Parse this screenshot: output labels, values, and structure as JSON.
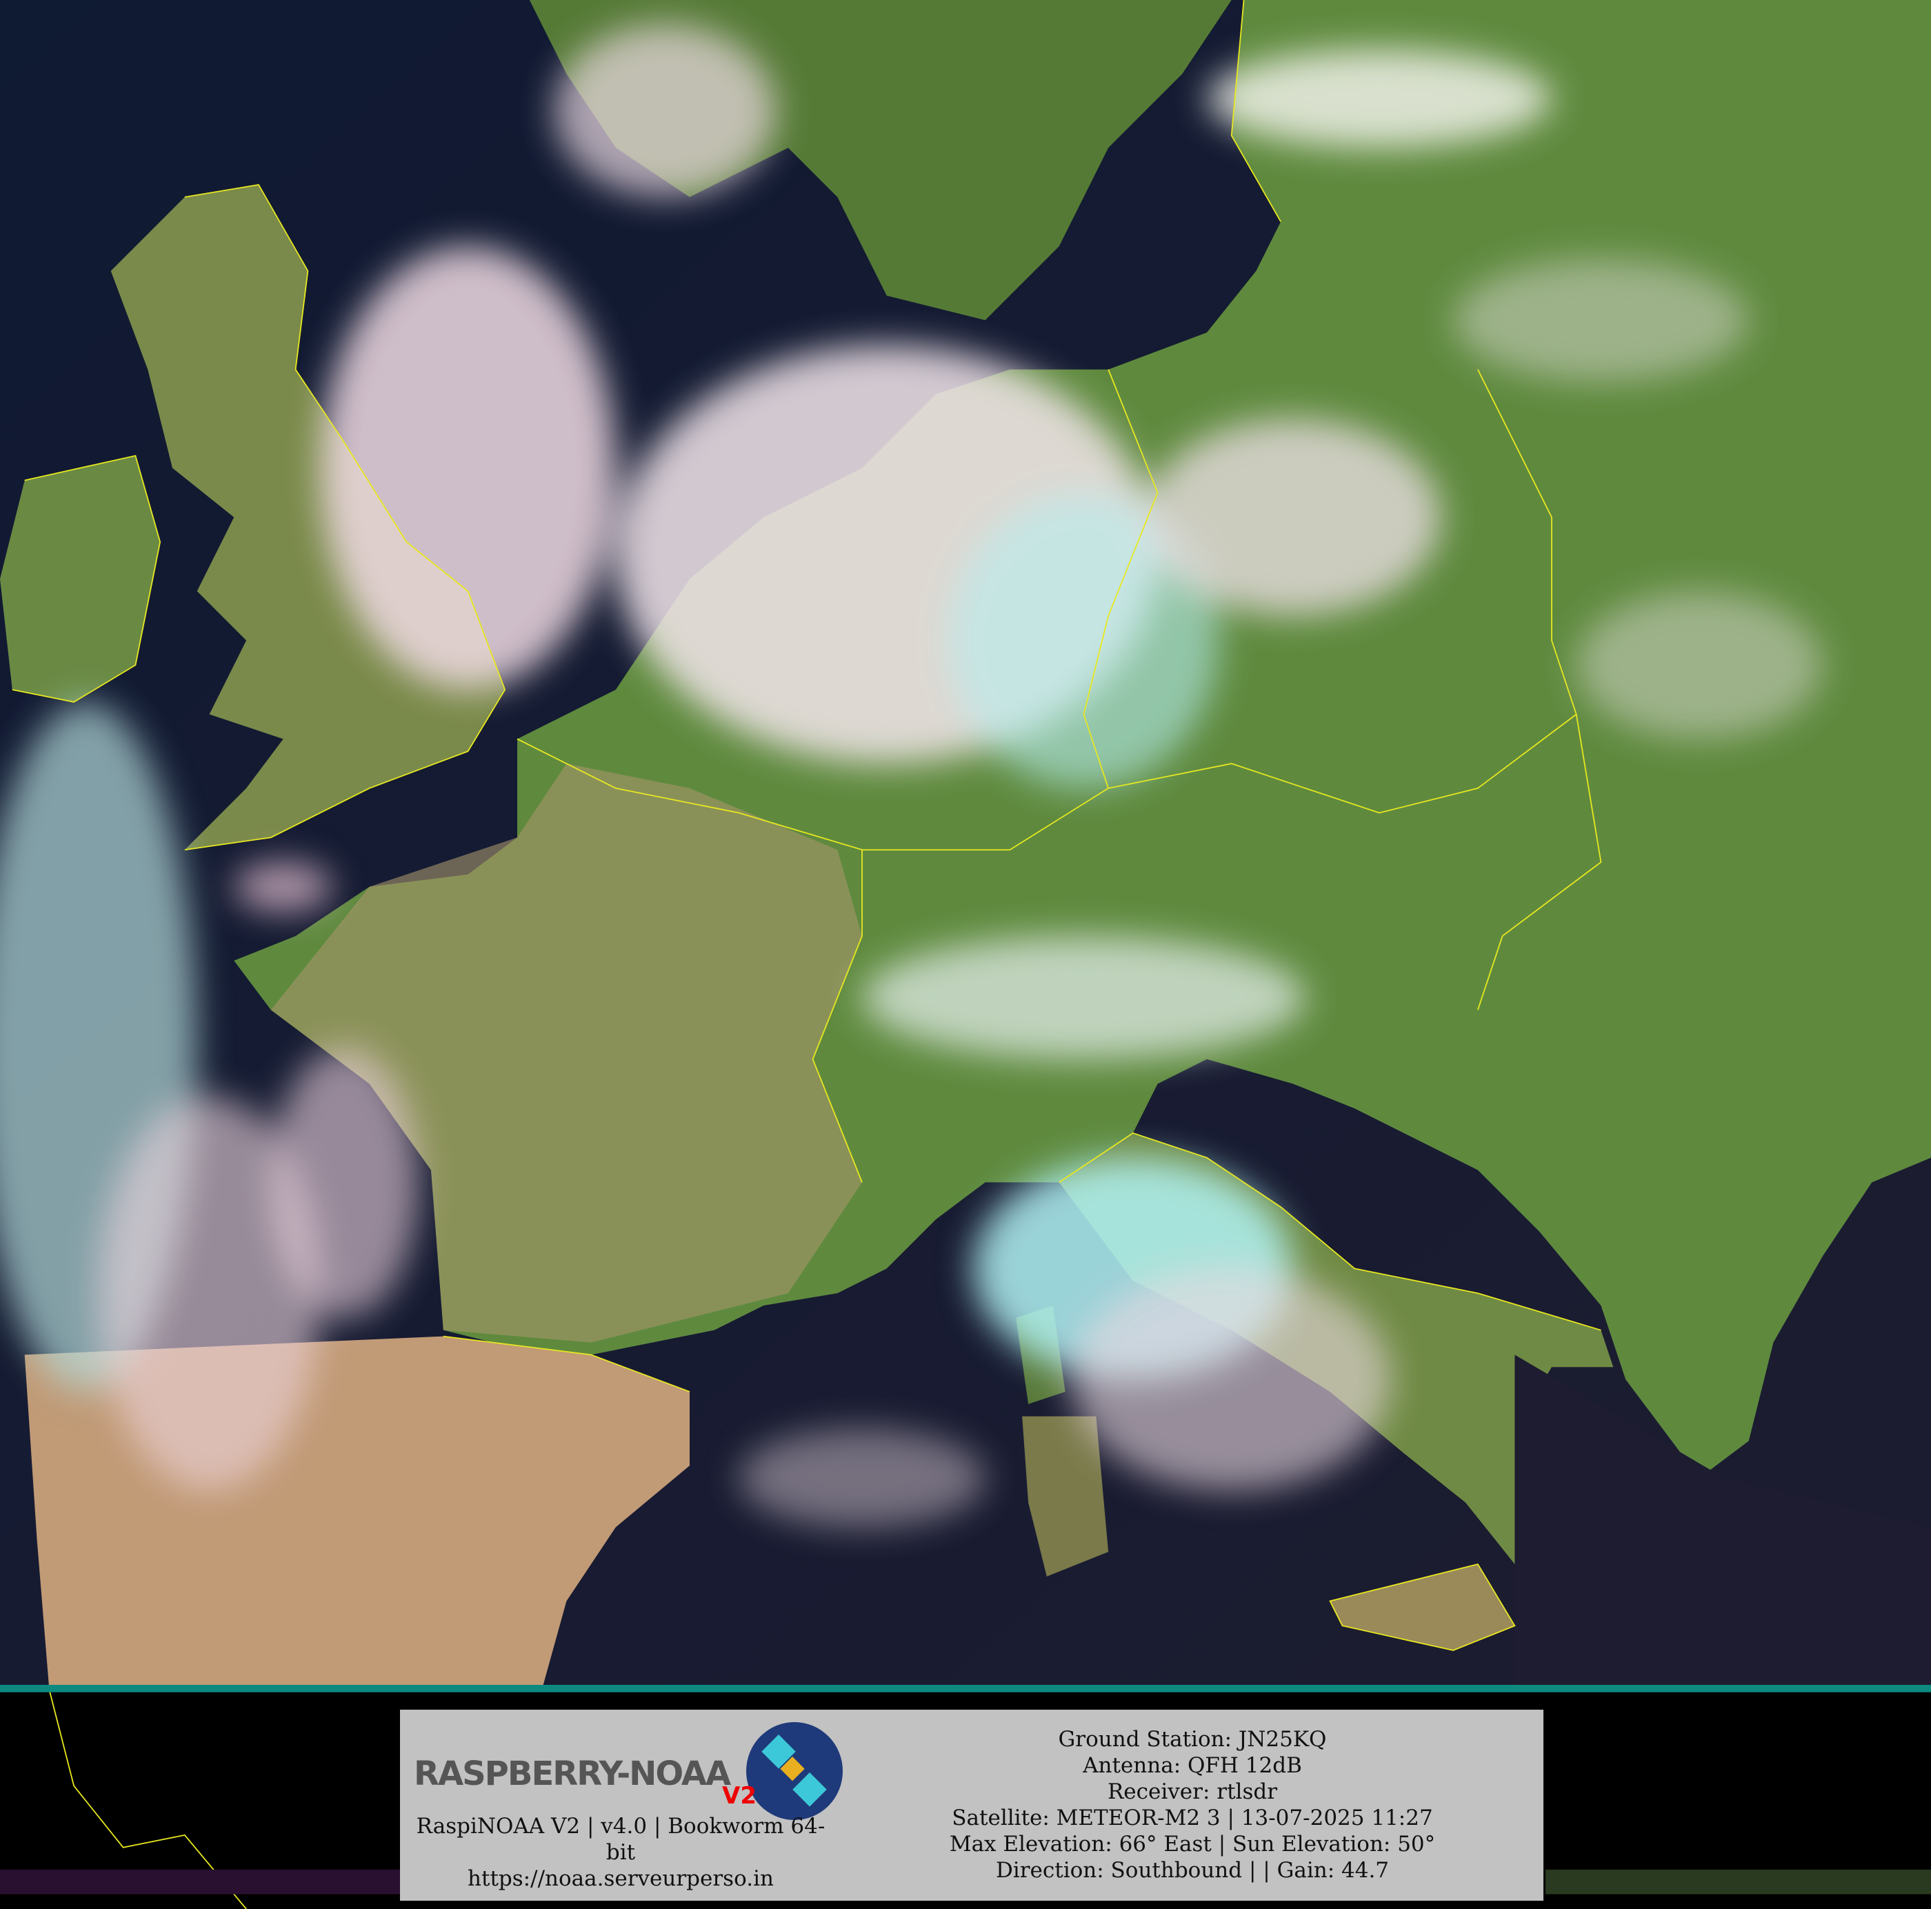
{
  "colors": {
    "sea": "#141c33",
    "land": "#5e8a3c",
    "land_dry": "#b89a72",
    "cloud": "#f2e4ea",
    "cloud_ice": "#a8eef0",
    "border": "#ffff33",
    "panel": "#c2c2c2"
  },
  "logo": {
    "text": "RASPBERRY-NOAA",
    "badge": "V2",
    "icon": "satellite-icon"
  },
  "footer": {
    "version_line": "RaspiNOAA V2 | v4.0 | Bookworm 64-bit",
    "url": "https://noaa.serveurperso.in"
  },
  "pass_info": {
    "ground_station": "Ground Station: JN25KQ",
    "antenna": "Antenna: QFH 12dB",
    "receiver": "Receiver: rtlsdr",
    "satellite": "Satellite: METEOR-M2 3 | 13-07-2025 11:27",
    "elevation": "Max Elevation: 66° East | Sun Elevation: 50°",
    "direction": "Direction: Southbound | | Gain: 44.7"
  }
}
